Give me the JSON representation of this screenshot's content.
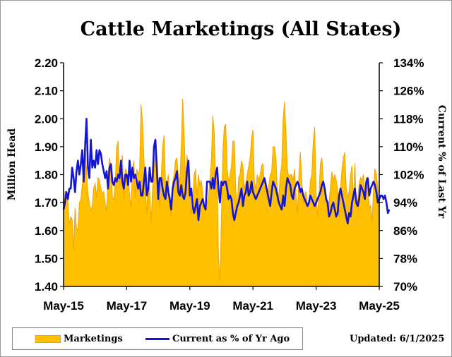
{
  "chart_data": {
    "type": "area-line-combo",
    "title": "Cattle Marketings (All States)",
    "ylabel_left": "Million Head",
    "ylabel_right": "Current % of Last Yr",
    "left_axis": {
      "min": 1.4,
      "max": 2.2,
      "ticks": [
        "1.40",
        "1.50",
        "1.60",
        "1.70",
        "1.80",
        "1.90",
        "2.00",
        "2.10",
        "2.20"
      ]
    },
    "right_axis": {
      "min": 70,
      "max": 134,
      "ticks": [
        "70%",
        "78%",
        "86%",
        "94%",
        "102%",
        "110%",
        "118%",
        "126%",
        "134%"
      ]
    },
    "x_tick_labels": [
      "May-15",
      "May-17",
      "May-19",
      "May-21",
      "May-23",
      "May-25"
    ],
    "x_start": "May-15",
    "series": [
      {
        "name": "Marketings",
        "type": "area",
        "color": "#FFC000",
        "values": [
          1.68,
          1.74,
          1.74,
          1.71,
          1.62,
          1.65,
          1.64,
          1.53,
          1.68,
          1.61,
          1.6,
          1.7,
          1.71,
          1.76,
          1.82,
          1.91,
          1.82,
          1.73,
          1.7,
          1.67,
          1.69,
          1.75,
          1.77,
          1.72,
          1.79,
          1.78,
          1.75,
          1.73,
          1.74,
          1.7,
          1.67,
          1.79,
          1.86,
          1.82,
          1.72,
          1.71,
          1.77,
          1.9,
          1.92,
          1.76,
          1.83,
          1.87,
          1.71,
          1.82,
          1.81,
          1.78,
          1.73,
          1.68,
          1.82,
          1.85,
          1.72,
          1.82,
          1.8,
          1.82,
          2.05,
          1.99,
          1.86,
          1.74,
          1.66,
          1.8,
          1.74,
          1.63,
          1.75,
          1.82,
          1.88,
          1.83,
          1.78,
          1.68,
          1.79,
          1.9,
          1.94,
          1.78,
          1.77,
          1.8,
          1.7,
          1.65,
          1.77,
          1.8,
          1.85,
          1.86,
          1.8,
          1.77,
          1.9,
          2.07,
          1.95,
          1.78,
          1.87,
          1.83,
          1.74,
          1.66,
          1.71,
          1.8,
          1.82,
          1.72,
          1.8,
          1.76,
          1.78,
          1.73,
          1.69,
          1.67,
          1.7,
          1.72,
          1.78,
          1.85,
          2.01,
          1.95,
          1.75,
          1.8,
          1.5,
          1.42,
          1.65,
          1.88,
          1.97,
          1.98,
          1.82,
          1.77,
          1.8,
          1.83,
          1.92,
          1.92,
          1.75,
          1.67,
          1.79,
          1.8,
          1.85,
          1.83,
          1.75,
          1.77,
          1.8,
          1.83,
          1.86,
          1.93,
          1.96,
          1.77,
          1.75,
          1.8,
          1.78,
          1.8,
          1.83,
          1.84,
          1.76,
          1.75,
          1.71,
          1.76,
          1.8,
          1.81,
          1.9,
          1.9,
          1.86,
          1.74,
          1.72,
          1.8,
          1.83,
          2.0,
          2.06,
          1.95,
          1.82,
          1.79,
          1.8,
          1.8,
          1.78,
          1.82,
          1.73,
          1.66,
          1.8,
          1.88,
          1.78,
          1.7,
          1.73,
          1.74,
          1.69,
          1.7,
          1.78,
          1.8,
          1.92,
          1.97,
          1.73,
          1.65,
          1.73,
          1.84,
          1.86,
          1.78,
          1.73,
          1.7,
          1.68,
          1.7,
          1.76,
          1.81,
          1.78,
          1.8,
          1.78,
          1.75,
          1.65,
          1.75,
          1.82,
          1.86,
          1.88,
          1.75,
          1.72,
          1.74,
          1.8,
          1.83,
          1.71,
          1.84,
          1.69,
          1.71,
          1.77,
          1.79,
          1.78,
          1.8,
          1.74,
          1.79,
          1.76,
          1.68,
          1.69,
          1.63,
          1.75,
          1.82,
          1.8,
          1.75,
          1.62
        ]
      },
      {
        "name": "Current as % of Yr Ago",
        "type": "line",
        "color": "#1515D6",
        "values": [
          92,
          94,
          97,
          95,
          98,
          98,
          104,
          101,
          97,
          103,
          106,
          102,
          105,
          109,
          100,
          110,
          118,
          104,
          101,
          112,
          104,
          106,
          104,
          109,
          105,
          109,
          108,
          105,
          103,
          101,
          103,
          98,
          104,
          105,
          100,
          99,
          101,
          100,
          102,
          101,
          106,
          100,
          98,
          102,
          102,
          99,
          106,
          100,
          104,
          101,
          102,
          100,
          98,
          100,
          96,
          96,
          100,
          104,
          96,
          98,
          104,
          100,
          100,
          110,
          112,
          104,
          95,
          101,
          101,
          98,
          96,
          95,
          100,
          97,
          95,
          92,
          98,
          100,
          101,
          103,
          97,
          96,
          99,
          96,
          95,
          97,
          103,
          106,
          96,
          98,
          93,
          91,
          93,
          95,
          89,
          93,
          94,
          95,
          93,
          92,
          100,
          100,
          100,
          98,
          101,
          98,
          102,
          104,
          98,
          94,
          100,
          99,
          100,
          100,
          98,
          95,
          96,
          95,
          91,
          89,
          91,
          93,
          94,
          96,
          98,
          93,
          96,
          97,
          100,
          96,
          97,
          100,
          97,
          96,
          95,
          96,
          97,
          98,
          99,
          100,
          101,
          99,
          97,
          95,
          93,
          97,
          100,
          99,
          98,
          96,
          94,
          93,
          92,
          96,
          93,
          98,
          101,
          100,
          99,
          96,
          95,
          98,
          99,
          100,
          99,
          97,
          98,
          96,
          95,
          94,
          93,
          94,
          96,
          95,
          94,
          93,
          94,
          95,
          96,
          97,
          99,
          100,
          98,
          95,
          94,
          90,
          91,
          93,
          94,
          92,
          90,
          91,
          96,
          98,
          96,
          94,
          92,
          90,
          88,
          91,
          90,
          94,
          96,
          98,
          94,
          93,
          95,
          99,
          98,
          97,
          95,
          100,
          101,
          96,
          98,
          99,
          100,
          99,
          97,
          94,
          95,
          96,
          96,
          95,
          96,
          94,
          91,
          92
        ]
      }
    ],
    "legend": {
      "placement": "bottom-left"
    },
    "grid": false
  },
  "updated_text": "Updated: 6/1/2025"
}
